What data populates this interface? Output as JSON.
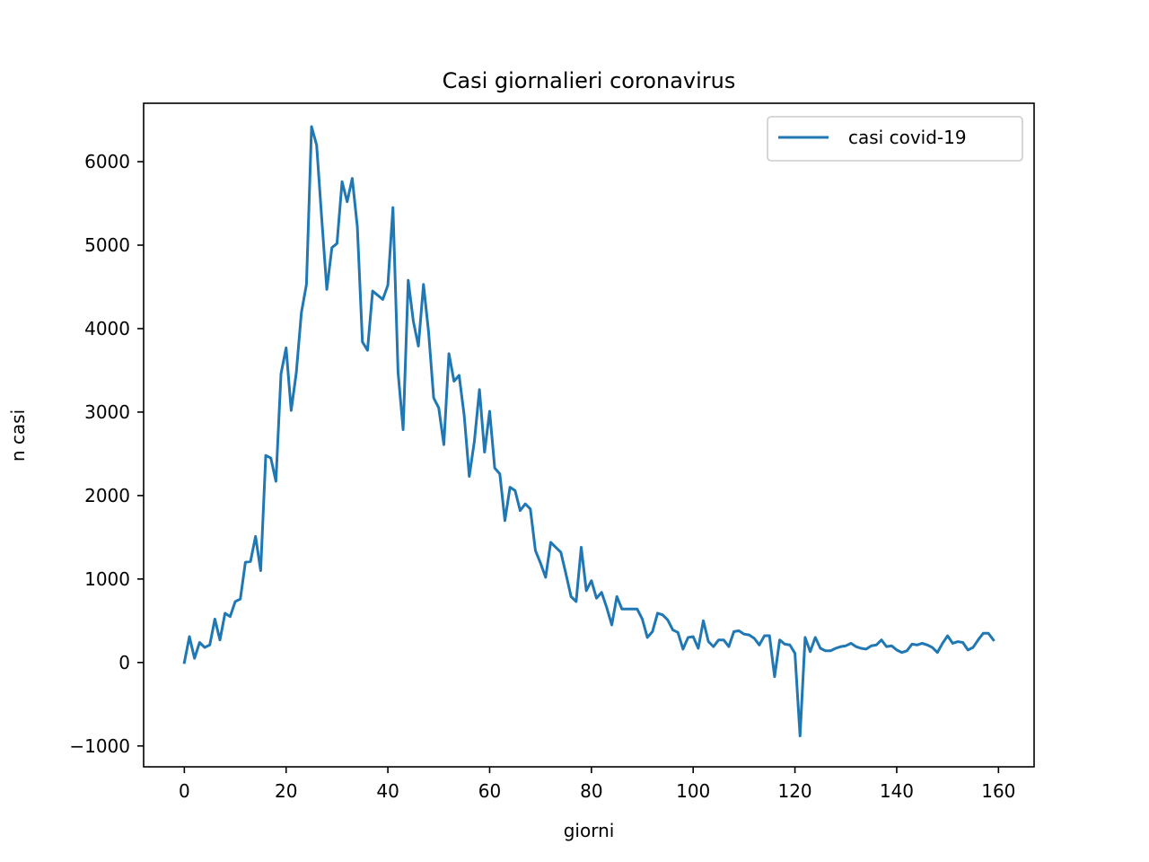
{
  "chart_data": {
    "type": "line",
    "title": "Casi giornalieri coronavirus",
    "xlabel": "giorni",
    "ylabel": "n casi",
    "xlim": [
      -8,
      167
    ],
    "ylim": [
      -1250,
      6700
    ],
    "x_ticks": [
      0,
      20,
      40,
      60,
      80,
      100,
      120,
      140,
      160
    ],
    "x_tick_labels": [
      "0",
      "20",
      "40",
      "60",
      "80",
      "100",
      "120",
      "140",
      "160"
    ],
    "y_ticks": [
      -1000,
      0,
      1000,
      2000,
      3000,
      4000,
      5000,
      6000
    ],
    "y_tick_labels": [
      "−1000",
      "0",
      "1000",
      "2000",
      "3000",
      "4000",
      "5000",
      "6000"
    ],
    "grid": false,
    "legend_position": "top-right",
    "series": [
      {
        "name": "casi covid-19",
        "color": "#1f77b4",
        "x_start": 0,
        "x_step": 1,
        "values": [
          0,
          310,
          50,
          240,
          180,
          210,
          520,
          270,
          590,
          550,
          730,
          760,
          1200,
          1210,
          1510,
          1100,
          2480,
          2450,
          2170,
          3460,
          3770,
          3020,
          3470,
          4190,
          4530,
          6420,
          6200,
          5320,
          4470,
          4970,
          5020,
          5760,
          5520,
          5800,
          5220,
          3840,
          3740,
          4450,
          4400,
          4350,
          4520,
          5450,
          3480,
          2790,
          4580,
          4090,
          3790,
          4530,
          3960,
          3170,
          3050,
          2610,
          3700,
          3370,
          3440,
          2960,
          2230,
          2650,
          3270,
          2520,
          3010,
          2330,
          2260,
          1700,
          2100,
          2060,
          1820,
          1900,
          1840,
          1340,
          1190,
          1020,
          1440,
          1380,
          1320,
          1060,
          790,
          730,
          1380,
          860,
          980,
          770,
          840,
          660,
          450,
          790,
          640,
          640,
          640,
          640,
          520,
          300,
          370,
          590,
          570,
          510,
          390,
          360,
          160,
          300,
          310,
          170,
          500,
          250,
          190,
          270,
          270,
          190,
          370,
          380,
          340,
          330,
          290,
          210,
          320,
          320,
          -170,
          270,
          220,
          210,
          110,
          -880,
          300,
          130,
          300,
          170,
          140,
          140,
          170,
          190,
          200,
          230,
          190,
          170,
          160,
          200,
          210,
          270,
          190,
          200,
          150,
          120,
          140,
          220,
          210,
          230,
          210,
          180,
          120,
          230,
          320,
          230,
          250,
          240,
          150,
          180,
          270,
          350,
          350,
          270
        ]
      }
    ]
  }
}
